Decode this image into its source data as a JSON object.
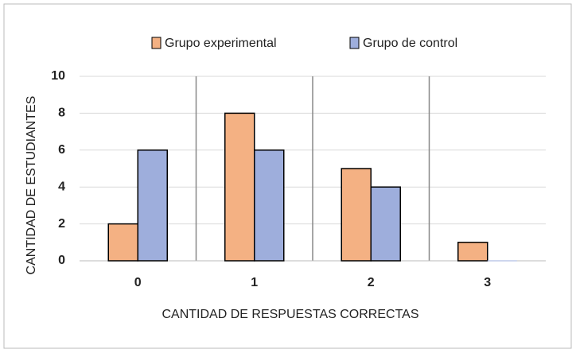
{
  "chart_data": {
    "type": "bar",
    "categories": [
      "0",
      "1",
      "2",
      "3"
    ],
    "series": [
      {
        "name": "Grupo experimental",
        "color": "#f4b183",
        "values": [
          2,
          8,
          5,
          1
        ]
      },
      {
        "name": "Grupo de control",
        "color": "#9eaedc",
        "values": [
          6,
          6,
          4,
          0
        ]
      }
    ],
    "xlabel": "CANTIDAD DE RESPUESTAS  CORRECTAS",
    "ylabel": "CANTIDAD  DE  ESTUDIANTES",
    "ylim": [
      0,
      10
    ],
    "yticks": [
      0,
      2,
      4,
      6,
      8,
      10
    ],
    "grid": true,
    "legend": "top"
  }
}
